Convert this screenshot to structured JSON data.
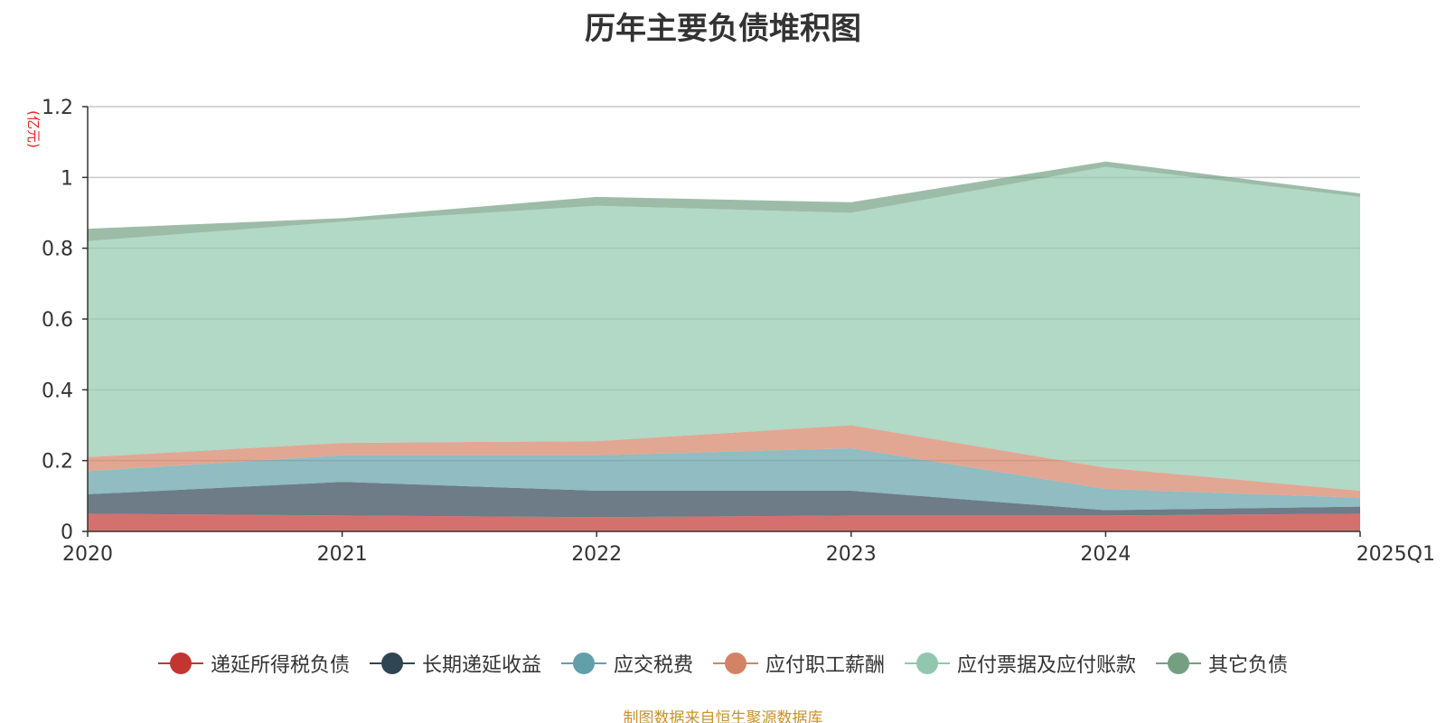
{
  "title": "历年主要负债堆积图",
  "source_note": "制图数据来自恒生聚源数据库",
  "chart_data": {
    "type": "area",
    "stacked": true,
    "title": "历年主要负债堆积图",
    "unit_label": "(亿元)",
    "x": [
      "2020",
      "2021",
      "2022",
      "2023",
      "2024",
      "2025Q1"
    ],
    "ylim": [
      0,
      1.2
    ],
    "yticks": [
      0,
      0.2,
      0.4,
      0.6,
      0.8,
      1,
      1.2
    ],
    "ytick_labels": [
      "0",
      "0.2",
      "0.4",
      "0.6",
      "0.8",
      "1",
      "1.2"
    ],
    "grid": true,
    "legend_position": "bottom",
    "series": [
      {
        "name": "递延所得税负债",
        "color": "#c23531",
        "values": [
          0.05,
          0.045,
          0.04,
          0.045,
          0.045,
          0.05
        ]
      },
      {
        "name": "长期递延收益",
        "color": "#2f4554",
        "values": [
          0.055,
          0.095,
          0.075,
          0.07,
          0.015,
          0.02
        ]
      },
      {
        "name": "应交税费",
        "color": "#61a0a8",
        "values": [
          0.065,
          0.075,
          0.1,
          0.12,
          0.06,
          0.025
        ]
      },
      {
        "name": "应付职工薪酬",
        "color": "#d48265",
        "values": [
          0.04,
          0.035,
          0.04,
          0.065,
          0.06,
          0.02
        ]
      },
      {
        "name": "应付票据及应付账款",
        "color": "#91c7ae",
        "values": [
          0.61,
          0.625,
          0.665,
          0.6,
          0.85,
          0.83
        ]
      },
      {
        "name": "其它负债",
        "color": "#749f83",
        "values": [
          0.035,
          0.01,
          0.025,
          0.03,
          0.015,
          0.01
        ]
      }
    ]
  }
}
